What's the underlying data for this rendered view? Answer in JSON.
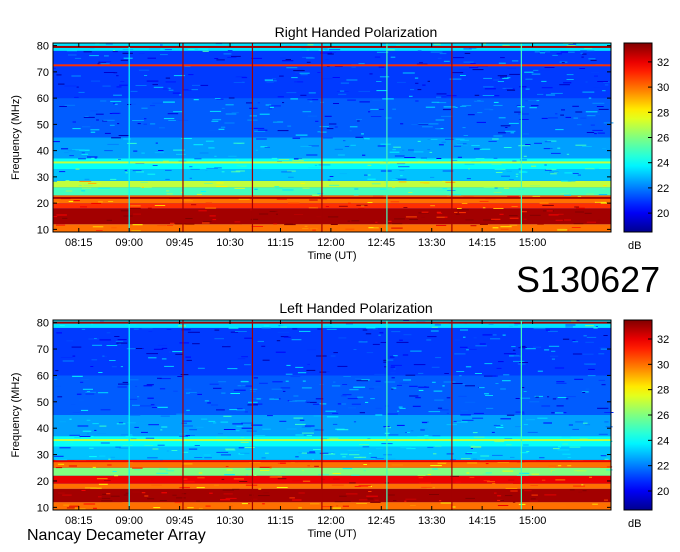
{
  "figure": {
    "observation_id": "S130627",
    "observatory": "Nancay Decameter Array",
    "colors": {
      "background": "#ffffff",
      "colormap": [
        "#00008f",
        "#0000ff",
        "#0080ff",
        "#00ffff",
        "#80ff80",
        "#ffff00",
        "#ff8000",
        "#ff0000",
        "#800000"
      ]
    }
  },
  "chart_data": [
    {
      "type": "heatmap",
      "title": "Right Handed Polarization",
      "xlabel": "Time (UT)",
      "ylabel": "Frequency (MHz)",
      "xticks": [
        "08:15",
        "09:00",
        "09:45",
        "10:30",
        "11:15",
        "12:00",
        "12:45",
        "13:30",
        "14:15",
        "15:00"
      ],
      "xlim": [
        "07:52",
        "16:10"
      ],
      "yticks": [
        10,
        20,
        30,
        40,
        50,
        60,
        70,
        80
      ],
      "ylim": [
        9,
        81
      ],
      "colorbar": {
        "label": "dB",
        "ticks": [
          20,
          22,
          24,
          26,
          28,
          30,
          32
        ],
        "range": [
          18.5,
          33.5
        ]
      },
      "bands": [
        {
          "from": 9,
          "to": 12,
          "db": 30
        },
        {
          "from": 12,
          "to": 18,
          "db": 33
        },
        {
          "from": 18,
          "to": 20,
          "db": 31
        },
        {
          "from": 20,
          "to": 23,
          "db": 30
        },
        {
          "from": 23,
          "to": 26,
          "db": 25
        },
        {
          "from": 26,
          "to": 28.5,
          "db": 27
        },
        {
          "from": 28.5,
          "to": 33,
          "db": 23
        },
        {
          "from": 33,
          "to": 37,
          "db": 24
        },
        {
          "from": 37,
          "to": 45,
          "db": 22.5
        },
        {
          "from": 45,
          "to": 60,
          "db": 21.5
        },
        {
          "from": 60,
          "to": 78,
          "db": 21
        },
        {
          "from": 78,
          "to": 81,
          "db": 23.5
        }
      ],
      "lines": [
        {
          "freq": 79.5,
          "db": 33
        },
        {
          "freq": 72.5,
          "db": 31
        },
        {
          "freq": 35.5,
          "db": 27
        },
        {
          "freq": 22,
          "db": 33
        }
      ],
      "vlines": [
        {
          "time": "09:00",
          "db": 24
        },
        {
          "time": "09:48",
          "db": 33
        },
        {
          "time": "10:50",
          "db": 33
        },
        {
          "time": "11:52",
          "db": 33
        },
        {
          "time": "12:50",
          "db": 25
        },
        {
          "time": "13:48",
          "db": 33
        },
        {
          "time": "14:50",
          "db": 25
        }
      ]
    },
    {
      "type": "heatmap",
      "title": "Left Handed Polarization",
      "xlabel": "Time (UT)",
      "ylabel": "Frequency (MHz)",
      "xticks": [
        "08:15",
        "09:00",
        "09:45",
        "10:30",
        "11:15",
        "12:00",
        "12:45",
        "13:30",
        "14:15",
        "15:00"
      ],
      "xlim": [
        "07:52",
        "16:10"
      ],
      "yticks": [
        10,
        20,
        30,
        40,
        50,
        60,
        70,
        80
      ],
      "ylim": [
        9,
        81
      ],
      "colorbar": {
        "label": "dB",
        "ticks": [
          20,
          22,
          24,
          26,
          28,
          30,
          32
        ],
        "range": [
          18.5,
          33.5
        ]
      },
      "bands": [
        {
          "from": 9,
          "to": 12,
          "db": 30
        },
        {
          "from": 12,
          "to": 17,
          "db": 33
        },
        {
          "from": 17,
          "to": 19,
          "db": 30
        },
        {
          "from": 19,
          "to": 22,
          "db": 32
        },
        {
          "from": 22,
          "to": 25,
          "db": 26
        },
        {
          "from": 25,
          "to": 28,
          "db": 30
        },
        {
          "from": 28,
          "to": 33,
          "db": 23
        },
        {
          "from": 33,
          "to": 37,
          "db": 24
        },
        {
          "from": 37,
          "to": 45,
          "db": 22.5
        },
        {
          "from": 45,
          "to": 60,
          "db": 21.5
        },
        {
          "from": 60,
          "to": 78,
          "db": 21
        },
        {
          "from": 78,
          "to": 81,
          "db": 23.5
        }
      ],
      "lines": [
        {
          "freq": 80,
          "db": 33
        },
        {
          "freq": 35.5,
          "db": 27
        },
        {
          "freq": 27.5,
          "db": 32
        }
      ],
      "vlines": [
        {
          "time": "09:00",
          "db": 24
        },
        {
          "time": "09:48",
          "db": 33
        },
        {
          "time": "10:50",
          "db": 33
        },
        {
          "time": "11:52",
          "db": 33
        },
        {
          "time": "12:50",
          "db": 25
        },
        {
          "time": "13:48",
          "db": 33
        },
        {
          "time": "14:50",
          "db": 25
        }
      ]
    }
  ]
}
